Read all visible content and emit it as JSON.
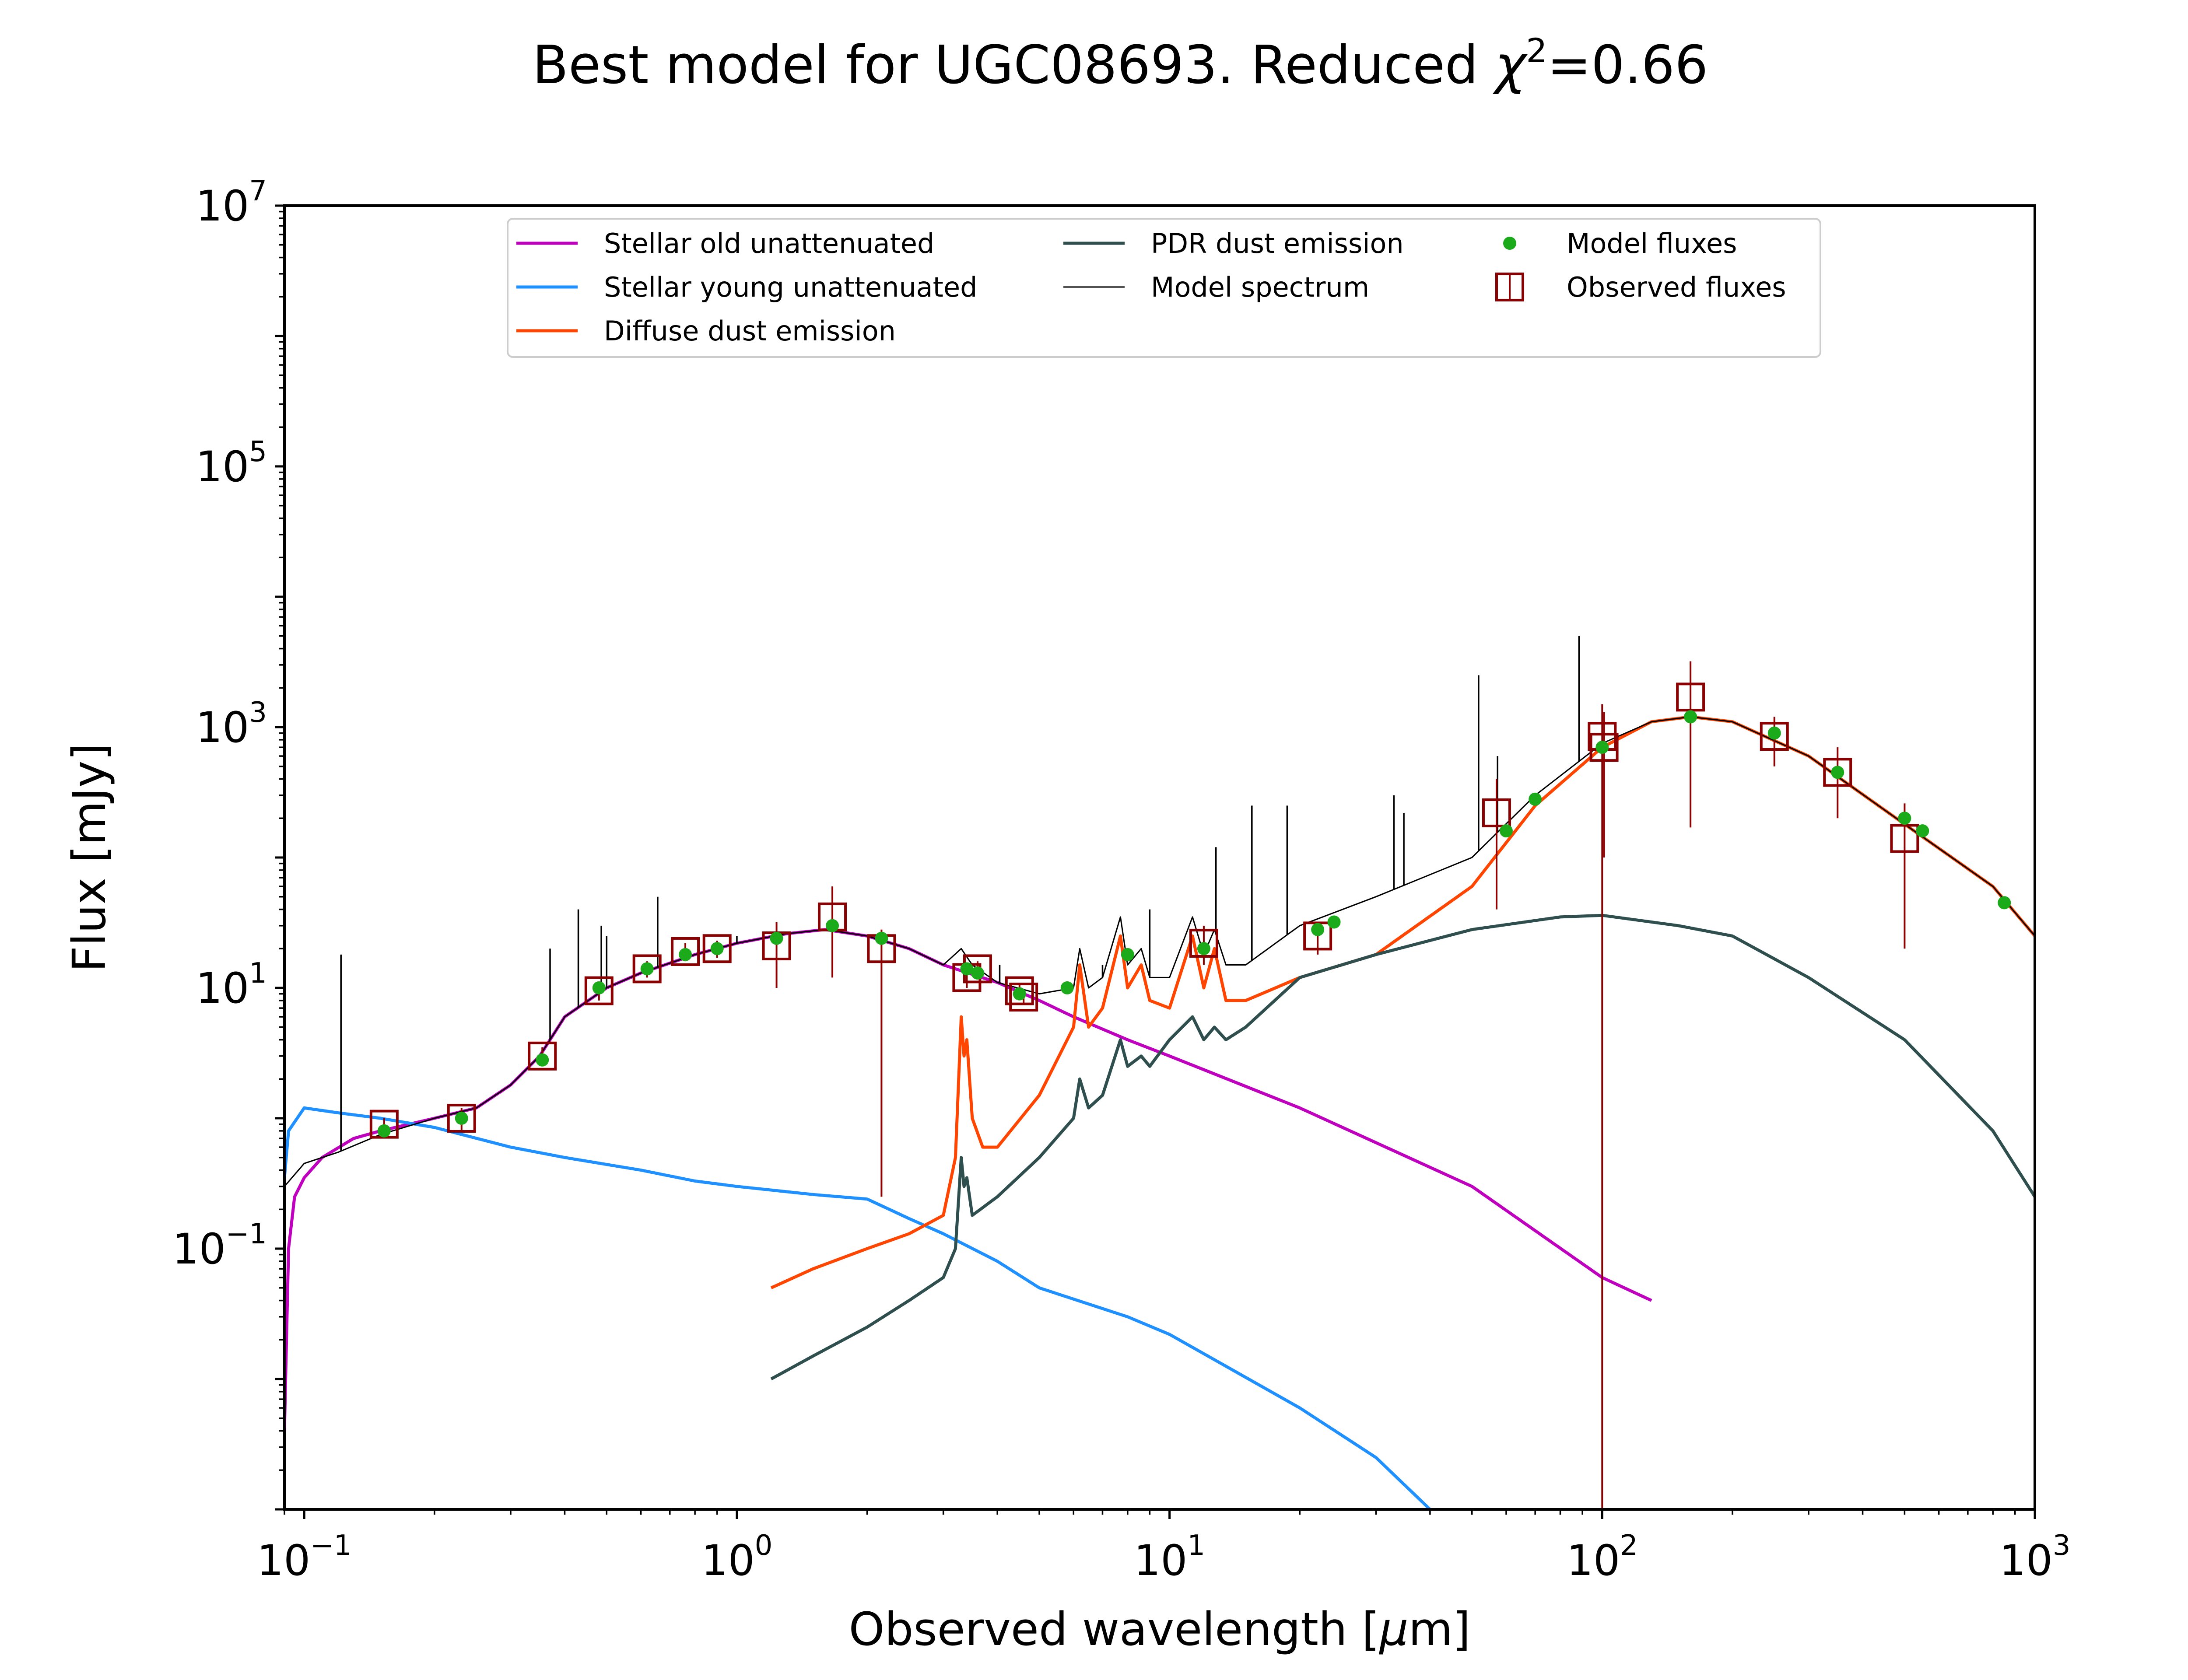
{
  "chart_data": {
    "type": "line",
    "title": "Best model for UGC08693. Reduced χ²=0.66",
    "title_parts": {
      "main": "Best model for UGC08693. Reduced ",
      "symbol": "χ",
      "superscript": "2",
      "value": "=0.66"
    },
    "xlabel": "Observed wavelength [μm]",
    "xlabel_parts": {
      "pre": "Observed wavelength [",
      "mu": "μ",
      "post": "m]"
    },
    "ylabel": "Flux [mJy]",
    "x_scale": "log",
    "y_scale": "log",
    "xlim": [
      0.09,
      1000
    ],
    "ylim": [
      0.001,
      10000000
    ],
    "x_ticks": [
      {
        "value": 0.1,
        "base": "10",
        "exp": "−1"
      },
      {
        "value": 1,
        "base": "10",
        "exp": "0"
      },
      {
        "value": 10,
        "base": "10",
        "exp": "1"
      },
      {
        "value": 100,
        "base": "10",
        "exp": "2"
      },
      {
        "value": 1000,
        "base": "10",
        "exp": "3"
      }
    ],
    "y_ticks": [
      {
        "value": 0.1,
        "base": "10",
        "exp": "−1"
      },
      {
        "value": 10,
        "base": "10",
        "exp": "1"
      },
      {
        "value": 1000,
        "base": "10",
        "exp": "3"
      },
      {
        "value": 100000,
        "base": "10",
        "exp": "5"
      },
      {
        "value": 10000000,
        "base": "10",
        "exp": "7"
      }
    ],
    "grid": false,
    "legend_position": "upper-center",
    "series": [
      {
        "name": "Stellar old unattenuated",
        "color": "#bf00bf",
        "width": 7,
        "points": [
          [
            0.09,
            0.004
          ],
          [
            0.092,
            0.1
          ],
          [
            0.095,
            0.25
          ],
          [
            0.1,
            0.35
          ],
          [
            0.11,
            0.5
          ],
          [
            0.13,
            0.7
          ],
          [
            0.15,
            0.8
          ],
          [
            0.2,
            1.0
          ],
          [
            0.25,
            1.2
          ],
          [
            0.3,
            1.8
          ],
          [
            0.35,
            3
          ],
          [
            0.4,
            6
          ],
          [
            0.5,
            10
          ],
          [
            0.6,
            13
          ],
          [
            0.8,
            18
          ],
          [
            1.0,
            22
          ],
          [
            1.3,
            26
          ],
          [
            1.6,
            28
          ],
          [
            2.0,
            25
          ],
          [
            2.5,
            20
          ],
          [
            3.0,
            15
          ],
          [
            4.0,
            11
          ],
          [
            5.0,
            8
          ],
          [
            6.0,
            6
          ],
          [
            8.0,
            4
          ],
          [
            10,
            3
          ],
          [
            20,
            1.2
          ],
          [
            50,
            0.3
          ],
          [
            100,
            0.06
          ],
          [
            130,
            0.04
          ]
        ]
      },
      {
        "name": "Stellar young unattenuated",
        "color": "#1e90ff",
        "width": 7,
        "points": [
          [
            0.09,
            0.35
          ],
          [
            0.092,
            0.8
          ],
          [
            0.1,
            1.2
          ],
          [
            0.12,
            1.1
          ],
          [
            0.15,
            1.0
          ],
          [
            0.2,
            0.85
          ],
          [
            0.3,
            0.6
          ],
          [
            0.4,
            0.5
          ],
          [
            0.6,
            0.4
          ],
          [
            0.8,
            0.33
          ],
          [
            1.0,
            0.3
          ],
          [
            1.5,
            0.26
          ],
          [
            2.0,
            0.24
          ],
          [
            2.5,
            0.17
          ],
          [
            3.0,
            0.13
          ],
          [
            4.0,
            0.08
          ],
          [
            5.0,
            0.05
          ],
          [
            8.0,
            0.03
          ],
          [
            10,
            0.022
          ],
          [
            20,
            0.006
          ],
          [
            30,
            0.0025
          ],
          [
            40,
            0.001
          ]
        ]
      },
      {
        "name": "Diffuse dust emission",
        "color": "#ff4500",
        "width": 7,
        "points": [
          [
            1.2,
            0.05
          ],
          [
            1.5,
            0.07
          ],
          [
            2.0,
            0.1
          ],
          [
            2.5,
            0.13
          ],
          [
            3.0,
            0.18
          ],
          [
            3.2,
            0.5
          ],
          [
            3.3,
            6
          ],
          [
            3.35,
            3
          ],
          [
            3.4,
            4
          ],
          [
            3.5,
            1
          ],
          [
            3.7,
            0.6
          ],
          [
            4.0,
            0.6
          ],
          [
            5.0,
            1.5
          ],
          [
            6.0,
            5
          ],
          [
            6.2,
            15
          ],
          [
            6.5,
            5
          ],
          [
            7.0,
            7
          ],
          [
            7.7,
            25
          ],
          [
            8.0,
            10
          ],
          [
            8.6,
            15
          ],
          [
            9.0,
            8
          ],
          [
            10,
            7
          ],
          [
            11.3,
            25
          ],
          [
            12,
            10
          ],
          [
            12.7,
            20
          ],
          [
            13.5,
            8
          ],
          [
            15,
            8
          ],
          [
            20,
            12
          ],
          [
            30,
            18
          ],
          [
            50,
            60
          ],
          [
            70,
            250
          ],
          [
            100,
            700
          ],
          [
            130,
            1100
          ],
          [
            160,
            1200
          ],
          [
            200,
            1100
          ],
          [
            300,
            600
          ],
          [
            500,
            180
          ],
          [
            800,
            60
          ],
          [
            1000,
            25
          ]
        ]
      },
      {
        "name": "PDR dust emission",
        "color": "#2f4f4f",
        "width": 7,
        "points": [
          [
            1.2,
            0.01
          ],
          [
            1.5,
            0.015
          ],
          [
            2.0,
            0.025
          ],
          [
            2.5,
            0.04
          ],
          [
            3.0,
            0.06
          ],
          [
            3.2,
            0.1
          ],
          [
            3.3,
            0.5
          ],
          [
            3.35,
            0.3
          ],
          [
            3.4,
            0.35
          ],
          [
            3.5,
            0.18
          ],
          [
            4.0,
            0.25
          ],
          [
            5.0,
            0.5
          ],
          [
            6.0,
            1
          ],
          [
            6.2,
            2
          ],
          [
            6.5,
            1.2
          ],
          [
            7.0,
            1.5
          ],
          [
            7.7,
            4
          ],
          [
            8.0,
            2.5
          ],
          [
            8.6,
            3
          ],
          [
            9.0,
            2.5
          ],
          [
            10,
            4
          ],
          [
            11.3,
            6
          ],
          [
            12,
            4
          ],
          [
            12.7,
            5
          ],
          [
            13.5,
            4
          ],
          [
            15,
            5
          ],
          [
            20,
            12
          ],
          [
            30,
            18
          ],
          [
            50,
            28
          ],
          [
            80,
            35
          ],
          [
            100,
            36
          ],
          [
            150,
            30
          ],
          [
            200,
            25
          ],
          [
            300,
            12
          ],
          [
            500,
            4
          ],
          [
            800,
            0.8
          ],
          [
            1000,
            0.25
          ]
        ]
      },
      {
        "name": "Model spectrum",
        "color": "#000000",
        "width": 3,
        "points": [
          [
            0.09,
            0.3
          ],
          [
            0.1,
            0.45
          ],
          [
            0.12,
            0.55
          ],
          [
            0.15,
            0.75
          ],
          [
            0.2,
            1.0
          ],
          [
            0.25,
            1.2
          ],
          [
            0.3,
            1.8
          ],
          [
            0.35,
            3
          ],
          [
            0.4,
            6
          ],
          [
            0.5,
            10
          ],
          [
            0.6,
            13
          ],
          [
            0.8,
            18
          ],
          [
            1.0,
            22
          ],
          [
            1.3,
            26
          ],
          [
            1.6,
            28
          ],
          [
            2.0,
            25
          ],
          [
            2.5,
            20
          ],
          [
            3.0,
            15
          ],
          [
            3.3,
            20
          ],
          [
            3.5,
            15
          ],
          [
            4.0,
            11
          ],
          [
            5.0,
            9
          ],
          [
            6.0,
            10
          ],
          [
            6.2,
            20
          ],
          [
            6.5,
            10
          ],
          [
            7.0,
            12
          ],
          [
            7.7,
            35
          ],
          [
            8.0,
            15
          ],
          [
            8.6,
            20
          ],
          [
            9.0,
            12
          ],
          [
            10,
            12
          ],
          [
            11.3,
            35
          ],
          [
            12,
            18
          ],
          [
            12.7,
            28
          ],
          [
            13.5,
            15
          ],
          [
            15,
            15
          ],
          [
            20,
            30
          ],
          [
            30,
            50
          ],
          [
            50,
            100
          ],
          [
            70,
            300
          ],
          [
            100,
            750
          ],
          [
            130,
            1100
          ],
          [
            160,
            1200
          ],
          [
            200,
            1100
          ],
          [
            300,
            600
          ],
          [
            500,
            180
          ],
          [
            800,
            60
          ],
          [
            1000,
            25
          ]
        ]
      }
    ],
    "emission_lines": [
      [
        0.1216,
        18
      ],
      [
        0.37,
        20
      ],
      [
        0.43,
        40
      ],
      [
        0.486,
        30
      ],
      [
        0.5,
        25
      ],
      [
        0.656,
        50
      ],
      [
        1.0,
        25
      ],
      [
        4.05,
        15
      ],
      [
        7.0,
        15
      ],
      [
        9.0,
        40
      ],
      [
        12.8,
        120
      ],
      [
        15.5,
        250
      ],
      [
        18.7,
        250
      ],
      [
        33,
        300
      ],
      [
        34.8,
        220
      ],
      [
        51.8,
        2500
      ],
      [
        57.3,
        600
      ],
      [
        88.4,
        5000
      ]
    ],
    "model_fluxes": [
      [
        0.153,
        0.8
      ],
      [
        0.231,
        1.0
      ],
      [
        0.355,
        2.8
      ],
      [
        0.48,
        10
      ],
      [
        0.62,
        14
      ],
      [
        0.76,
        18
      ],
      [
        0.9,
        20
      ],
      [
        1.235,
        24
      ],
      [
        1.662,
        30
      ],
      [
        2.159,
        24
      ],
      [
        3.4,
        14
      ],
      [
        3.6,
        13
      ],
      [
        4.5,
        9
      ],
      [
        5.8,
        10
      ],
      [
        8.0,
        18
      ],
      [
        12,
        20
      ],
      [
        22,
        28
      ],
      [
        24,
        32
      ],
      [
        60,
        160
      ],
      [
        70,
        280
      ],
      [
        100,
        700
      ],
      [
        160,
        1200
      ],
      [
        250,
        900
      ],
      [
        350,
        450
      ],
      [
        500,
        200
      ],
      [
        550,
        160
      ],
      [
        850,
        45
      ]
    ],
    "observed_fluxes": [
      {
        "x": 0.153,
        "y": 0.9,
        "err_lo": 0.75,
        "err_hi": 1.0
      },
      {
        "x": 0.231,
        "y": 1.0,
        "err_lo": 0.8,
        "err_hi": 1.2
      },
      {
        "x": 0.355,
        "y": 3.0,
        "err_lo": 2.5,
        "err_hi": 3.5
      },
      {
        "x": 0.48,
        "y": 9.5,
        "err_lo": 8,
        "err_hi": 11
      },
      {
        "x": 0.62,
        "y": 14,
        "err_lo": 12,
        "err_hi": 16
      },
      {
        "x": 0.76,
        "y": 19,
        "err_lo": 16,
        "err_hi": 22
      },
      {
        "x": 0.9,
        "y": 20,
        "err_lo": 17,
        "err_hi": 23
      },
      {
        "x": 1.235,
        "y": 21,
        "err_lo": 10,
        "err_hi": 32
      },
      {
        "x": 1.662,
        "y": 35,
        "err_lo": 12,
        "err_hi": 60
      },
      {
        "x": 2.159,
        "y": 20,
        "err_lo": 0.25,
        "err_hi": 28
      },
      {
        "x": 3.4,
        "y": 12,
        "err_lo": 10,
        "err_hi": 14
      },
      {
        "x": 3.6,
        "y": 14,
        "err_lo": 12,
        "err_hi": 16
      },
      {
        "x": 4.5,
        "y": 9.5,
        "err_lo": 8.5,
        "err_hi": 10.5
      },
      {
        "x": 4.6,
        "y": 8.5,
        "err_lo": 7.5,
        "err_hi": 9.5
      },
      {
        "x": 12,
        "y": 22,
        "err_lo": 15,
        "err_hi": 30
      },
      {
        "x": 22,
        "y": 25,
        "err_lo": 18,
        "err_hi": 32
      },
      {
        "x": 57,
        "y": 220,
        "err_lo": 40,
        "err_hi": 400
      },
      {
        "x": 100,
        "y": 850,
        "err_lo": 0.001,
        "err_hi": 1500
      },
      {
        "x": 101,
        "y": 700,
        "err_lo": 100,
        "err_hi": 1300
      },
      {
        "x": 160,
        "y": 1700,
        "err_lo": 170,
        "err_hi": 3200
      },
      {
        "x": 250,
        "y": 850,
        "err_lo": 500,
        "err_hi": 1200
      },
      {
        "x": 350,
        "y": 450,
        "err_lo": 200,
        "err_hi": 700
      },
      {
        "x": 500,
        "y": 140,
        "err_lo": 20,
        "err_hi": 260
      }
    ],
    "model_fluxes_color": "#1aaa1a",
    "observed_fluxes_color": "#8b0000",
    "legend": [
      {
        "label": "Stellar old unattenuated",
        "kind": "line",
        "color": "#bf00bf"
      },
      {
        "label": "Stellar young unattenuated",
        "kind": "line",
        "color": "#1e90ff"
      },
      {
        "label": "Diffuse dust emission",
        "kind": "line",
        "color": "#ff4500"
      },
      {
        "label": "PDR dust emission",
        "kind": "line",
        "color": "#2f4f4f"
      },
      {
        "label": "Model spectrum",
        "kind": "thin-line",
        "color": "#000000"
      },
      {
        "label": "Model fluxes",
        "kind": "dot",
        "color": "#1aaa1a"
      },
      {
        "label": "Observed fluxes",
        "kind": "square",
        "color": "#8b0000"
      }
    ]
  }
}
